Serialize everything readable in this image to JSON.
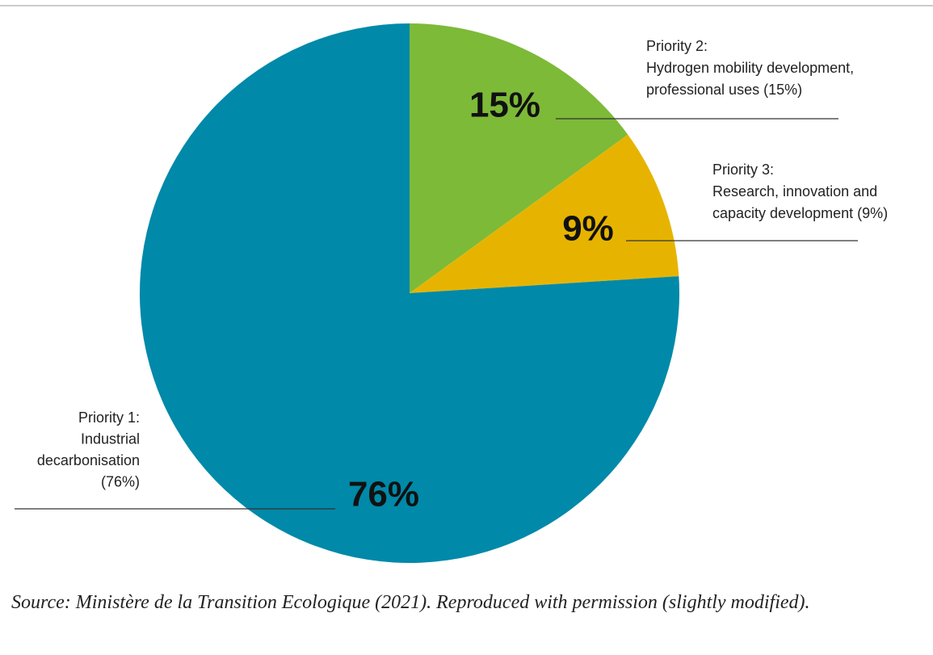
{
  "chart_data": {
    "type": "pie",
    "categories": [
      [
        "Priority 2:",
        "Hydrogen mobility development,",
        "professional uses (15%)"
      ],
      [
        "Priority 3:",
        "Research, innovation and",
        "capacity development (9%)"
      ],
      [
        "Priority 1:",
        "Industrial",
        "decarbonisation",
        "(76%)"
      ]
    ],
    "values": [
      15,
      9,
      76
    ],
    "value_labels": [
      "15%",
      "9%",
      "76%"
    ],
    "colors": [
      "#7dba38",
      "#e6b400",
      "#0089a9"
    ],
    "source": "Source: Ministère de la Transition Ecologique (2021). Reproduced with permission (slightly modified)."
  }
}
